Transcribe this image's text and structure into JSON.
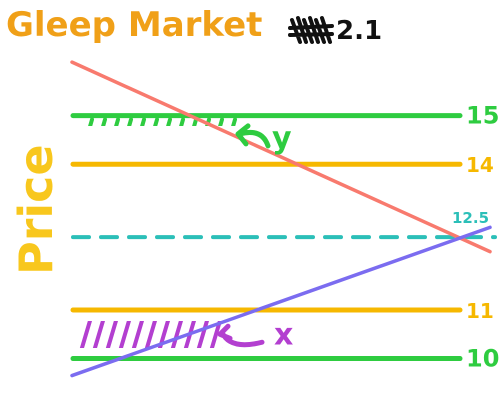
{
  "chart_data": {
    "type": "line",
    "title": "Gleep Market",
    "title_suffix": "2.1",
    "ylabel": "Price",
    "ylim": [
      9.25,
      16.35
    ],
    "grid": false,
    "levels": [
      {
        "name": "green-upper",
        "value": 15,
        "label": "15",
        "color": "#2ecc40"
      },
      {
        "name": "orange-upper",
        "value": 14,
        "label": "14",
        "color": "#f6b800"
      },
      {
        "name": "teal-dashed",
        "value": 12.5,
        "label": "12.5",
        "color": "#2bbfb8"
      },
      {
        "name": "orange-lower",
        "value": 11,
        "label": "11",
        "color": "#f6b800"
      },
      {
        "name": "green-lower",
        "value": 10,
        "label": "10",
        "color": "#2ecc40"
      }
    ],
    "curves": [
      {
        "name": "red-decreasing",
        "color": "#f87a6e",
        "start": 16.1,
        "end": 12.2
      },
      {
        "name": "purple-increasing",
        "color": "#7b6cf0",
        "start": 9.65,
        "end": 12.7
      }
    ],
    "annotations": [
      {
        "name": "y-marker",
        "text": "y",
        "color": "#2ecc40",
        "between": [
          14,
          15
        ]
      },
      {
        "name": "x-marker",
        "text": "x",
        "color": "#b33fd0",
        "between": [
          10,
          11
        ]
      }
    ]
  }
}
